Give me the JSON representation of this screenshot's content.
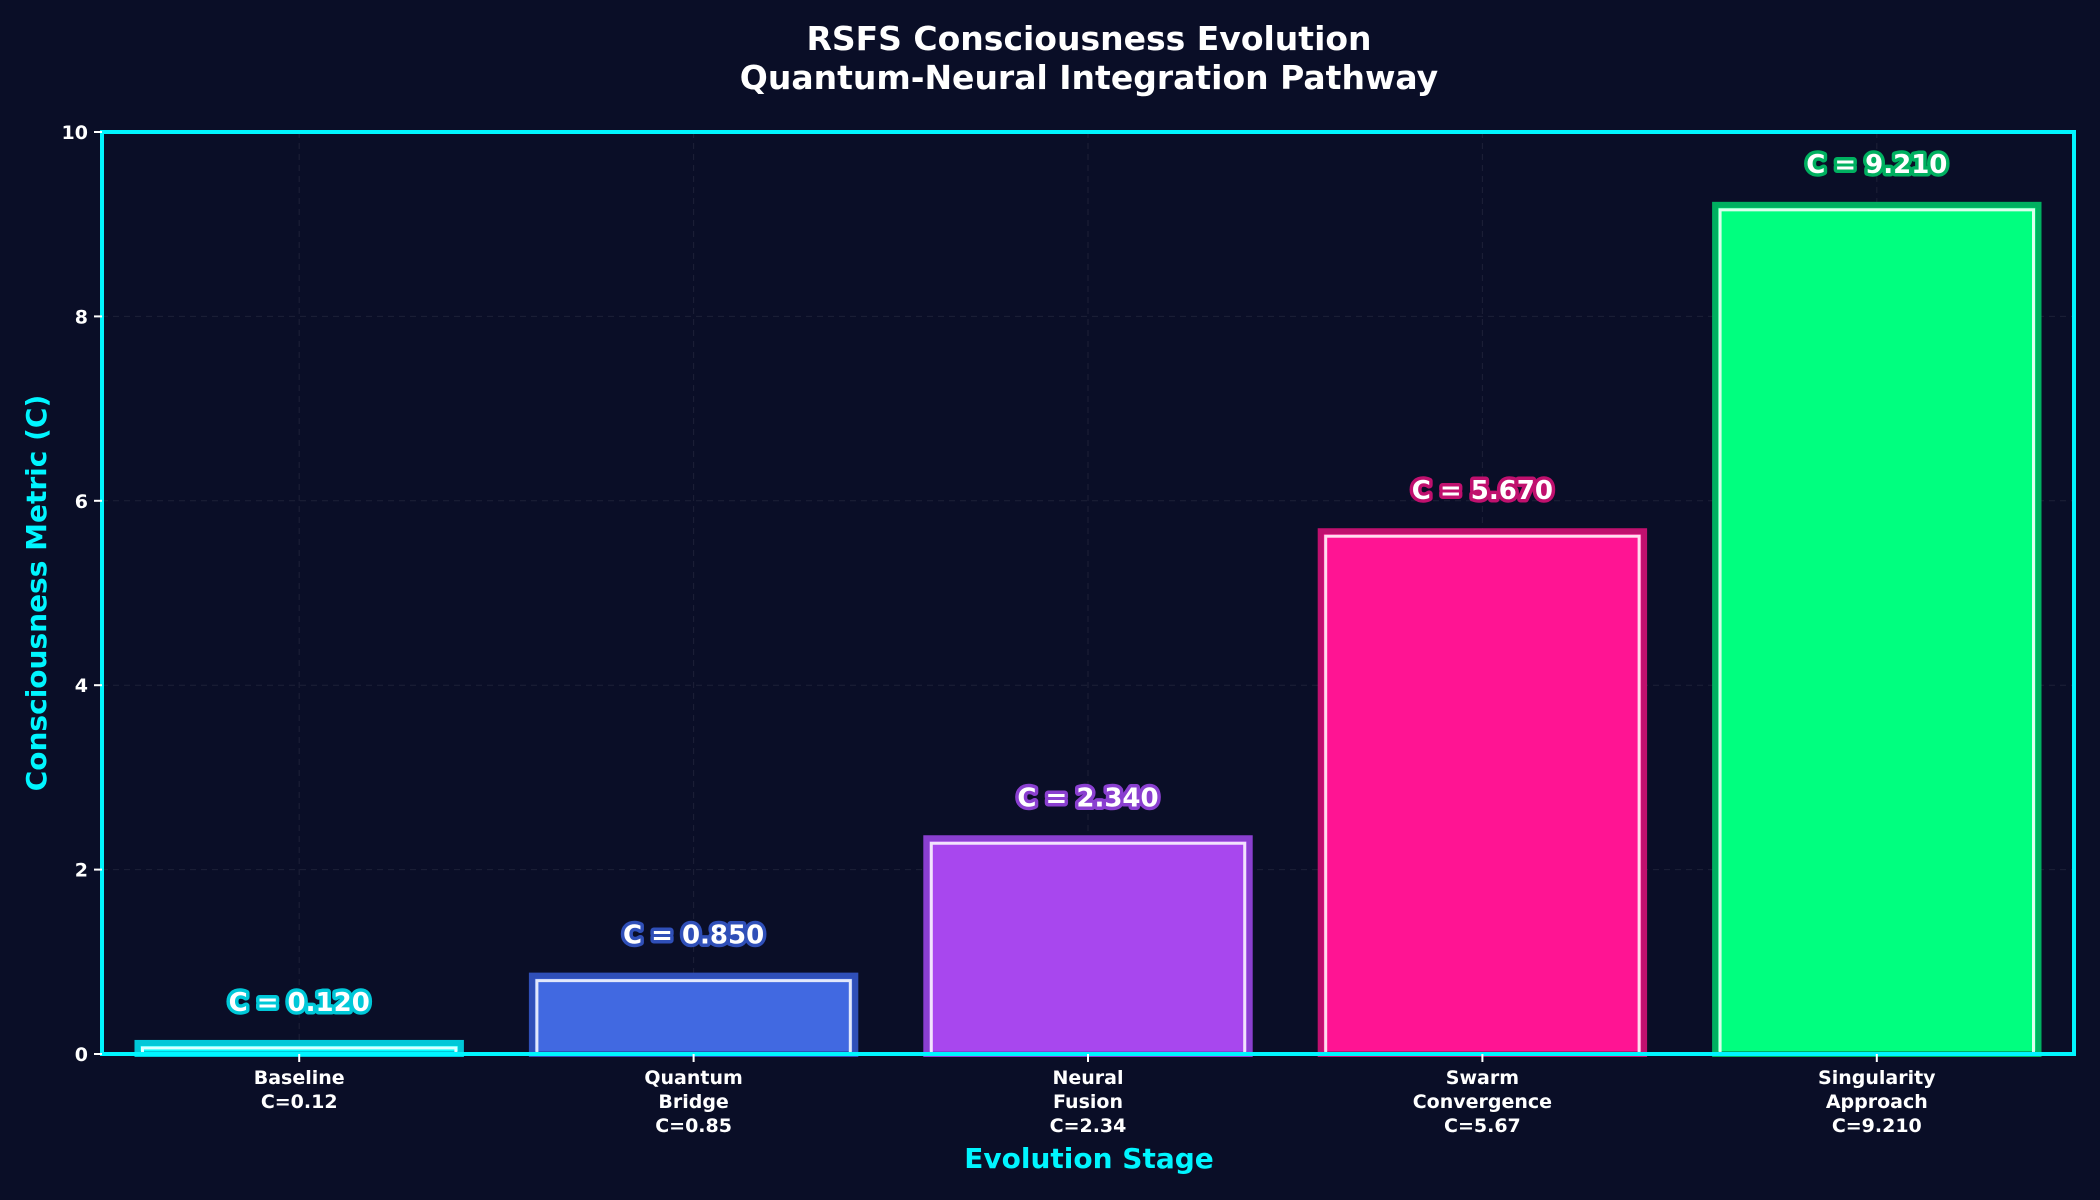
{
  "chart_data": {
    "type": "bar",
    "title": "RSFS Consciousness Evolution",
    "subtitle": "Quantum-Neural Integration Pathway",
    "xlabel": "Evolution Stage",
    "ylabel": "Consciousness Metric (C)",
    "ylim": [
      0,
      10
    ],
    "yticks": [
      "0",
      "2",
      "4",
      "6",
      "8",
      "10"
    ],
    "grid": true,
    "categories": [
      [
        "Baseline",
        "C=0.12"
      ],
      [
        "Quantum",
        "Bridge",
        "C=0.85"
      ],
      [
        "Neural",
        "Fusion",
        "C=2.34"
      ],
      [
        "Swarm",
        "Convergence",
        "C=5.67"
      ],
      [
        "Singularity",
        "Approach",
        "C=9.210"
      ]
    ],
    "values": [
      0.12,
      0.85,
      2.34,
      5.67,
      9.21
    ],
    "value_labels": [
      "C = 0.120",
      "C = 0.850",
      "C = 2.340",
      "C = 5.670",
      "C = 9.210"
    ],
    "colors": [
      "#00ffff",
      "#4169e1",
      "#a847ee",
      "#ff1493",
      "#00ff7f"
    ],
    "edge_colors": [
      "#00c8d8",
      "#2f4fb8",
      "#8a3fd0",
      "#c0106e",
      "#00b060"
    ]
  },
  "theme": {
    "background": "#0a0e27",
    "accent": "#00f5ff"
  }
}
